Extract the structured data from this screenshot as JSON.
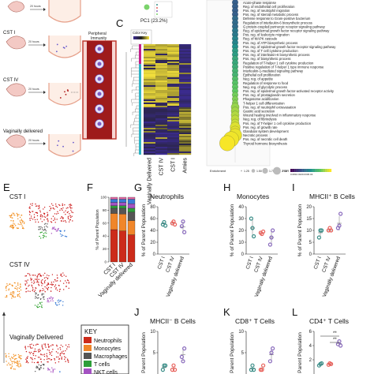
{
  "panel_letters": {
    "c": "C",
    "e": "E",
    "f": "F",
    "g": "G",
    "h": "H",
    "i": "I",
    "j": "J",
    "k": "K",
    "l": "L"
  },
  "panel_a": {
    "rows": [
      {
        "label": "CST I",
        "time": "20 hours"
      },
      {
        "label": "CST IV",
        "time": "20 hours"
      },
      {
        "label": "Vaginally delivered",
        "time": "20 hours"
      }
    ],
    "top_time": "20 hours",
    "peripheral_label": "Peripheral\nImmunity"
  },
  "pca": {
    "axis_label": "PC1 (23.2%)"
  },
  "heatmap": {
    "color_key_title": "Color Key",
    "columns": [
      "Vaginally Delivered",
      "CST IV",
      "CST I",
      "Amies"
    ],
    "colors": {
      "low": "#3b2b8f",
      "mid": "#2a2a2a",
      "high": "#f5e23c"
    }
  },
  "enrichment": {
    "terms": [
      "Acute-phase response",
      "Reg. of endothelial cell proliferation",
      "Pos. reg. of neutrophil migration",
      "Pos. reg. of steroid metabolic process",
      "Defense response to Gram-positive bacterium",
      "Regulation of interleukin-6 biosynthetic process",
      "G protein-coupled purinergic receptor signaling pathway",
      "Reg. of epidermal growth factor receptor signaling pathway",
      "Pos. reg. of leukocyte migration",
      "Reg. of MAPK cascade",
      "Pos. reg. of ATP biosynthetic process",
      "Pos. reg. of epidermal growth factor receptor signaling pathway",
      "Pos. reg. of T cell cytokine production",
      "Pos. reg. of interleukin-6 biosynthetic process",
      "Pos. reg. of biosynthetic process",
      "Regulation of T-helper 1 cell cytokine production",
      "Positive regulation of T-helper 1 type immune response",
      "Interleukin-1-mediated signaling pathway",
      "Epithelial cell proliferation",
      "Neg. reg. of appetite",
      "Regulation of response to food",
      "Neg. reg. of glycolytic process",
      "Pos. reg. of epidermal growth factor-activated receptor activity",
      "Pos. reg. of prostaglandin secretion",
      "Phagosome acidification",
      "T-helper 1 cell differentiation",
      "Pos. reg. of neutrophil extravasation",
      "Gastric acid secretion",
      "Wound healing involved in inflammatory response",
      "Neg. reg. of fibrinolysis",
      "Pos. reg. of T-helper 1 cell cytokine production",
      "Pos. reg. of growth rate",
      "Glandular system development",
      "Necrotic process",
      "Pos. reg. of necrotic cell death",
      "Thyroid hormone biosynthesis"
    ],
    "bubbles": [
      {
        "size": 2,
        "fdr": 0.3
      },
      {
        "size": 2,
        "fdr": 0.3
      },
      {
        "size": 2,
        "fdr": 0.3
      },
      {
        "size": 2,
        "fdr": 0.3
      },
      {
        "size": 2,
        "fdr": 0.35
      },
      {
        "size": 2,
        "fdr": 0.35
      },
      {
        "size": 2,
        "fdr": 0.35
      },
      {
        "size": 2,
        "fdr": 0.4
      },
      {
        "size": 2,
        "fdr": 0.4
      },
      {
        "size": 2,
        "fdr": 0.45
      },
      {
        "size": 2,
        "fdr": 0.45
      },
      {
        "size": 2,
        "fdr": 0.5
      },
      {
        "size": 2,
        "fdr": 0.55
      },
      {
        "size": 2,
        "fdr": 0.55
      },
      {
        "size": 2,
        "fdr": 0.6
      },
      {
        "size": 2,
        "fdr": 0.6
      },
      {
        "size": 2,
        "fdr": 0.62
      },
      {
        "size": 2,
        "fdr": 0.65
      },
      {
        "size": 2,
        "fdr": 0.65
      },
      {
        "size": 2,
        "fdr": 0.7
      },
      {
        "size": 2,
        "fdr": 0.72
      },
      {
        "size": 2,
        "fdr": 0.74
      },
      {
        "size": 2,
        "fdr": 0.75
      },
      {
        "size": 2,
        "fdr": 0.78
      },
      {
        "size": 2,
        "fdr": 0.8
      },
      {
        "size": 2,
        "fdr": 0.82
      },
      {
        "size": 3,
        "fdr": 0.84
      },
      {
        "size": 3,
        "fdr": 0.86
      },
      {
        "size": 3,
        "fdr": 0.88
      },
      {
        "size": 3,
        "fdr": 0.9
      },
      {
        "size": 3,
        "fdr": 0.92
      },
      {
        "size": 4,
        "fdr": 0.95
      },
      {
        "size": 4,
        "fdr": 0.96
      },
      {
        "size": 4,
        "fdr": 0.97
      },
      {
        "size": 5,
        "fdr": 0.98
      },
      {
        "size": 5,
        "fdr": 0.99
      }
    ],
    "legend_enrichment": "Enrichment",
    "legend_sizes": [
      "1.25",
      "1.50",
      "1.75",
      "2.00"
    ],
    "legend_fdr": "FDR",
    "legend_fdr_ticks": "0.0810.0220.0330.04"
  },
  "tsne": {
    "labels": [
      "CST I",
      "CST IV",
      "Vaginally Delivered"
    ],
    "colors": {
      "neutrophils": "#cc1a1a",
      "monocytes": "#f28c1a",
      "macrophages": "#555555",
      "t_cells": "#2ca02c",
      "nkt": "#a64dbf",
      "bcells": "#3a7bd5"
    }
  },
  "key": {
    "title": "KEY",
    "items": [
      {
        "label": "Neutrophils",
        "color": "#cc2b1a"
      },
      {
        "label": "Monocytes",
        "color": "#f0862a"
      },
      {
        "label": "Macrophages",
        "color": "#555555"
      },
      {
        "label": "T cells",
        "color": "#2e9e3a"
      },
      {
        "label": "NKT cells",
        "color": "#a452c2"
      }
    ]
  },
  "chart_data": [
    {
      "panel": "F",
      "type": "bar",
      "categories": [
        "CST I",
        "CST IV",
        "Vaginally delivered"
      ],
      "ylabel": "% of Parent Population",
      "ylim": [
        0,
        100
      ],
      "yticks": [
        "0",
        "20",
        "40",
        "60",
        "80",
        "100"
      ],
      "series": [
        {
          "name": "Neutrophils",
          "color": "#cc2b1a",
          "values": [
            50,
            48,
            42
          ]
        },
        {
          "name": "Monocytes",
          "color": "#f0862a",
          "values": [
            25,
            26,
            22
          ]
        },
        {
          "name": "Macrophages",
          "color": "#555555",
          "values": [
            8,
            9,
            13
          ]
        },
        {
          "name": "T cells",
          "color": "#2e9e3a",
          "values": [
            4,
            4,
            6
          ]
        },
        {
          "name": "NKT cells",
          "color": "#a452c2",
          "values": [
            5,
            5,
            7
          ]
        },
        {
          "name": "",
          "color": "#3a7bd5",
          "values": [
            5,
            5,
            7
          ]
        },
        {
          "name": "",
          "color": "#e86aa6",
          "values": [
            3,
            3,
            3
          ]
        }
      ]
    },
    {
      "panel": "G",
      "type": "scatter",
      "title": "Neutrophils",
      "categories": [
        "CST I",
        "CST IV",
        "Vaginally delivered"
      ],
      "ylabel": "% of Parent Population",
      "ylim": [
        0,
        80
      ],
      "yticks": [
        "0",
        "20",
        "40",
        "60",
        "80"
      ],
      "series": [
        {
          "name": "CST I",
          "color": "#3b8e88",
          "values": [
            50,
            54,
            48
          ],
          "mean": 51
        },
        {
          "name": "CST IV",
          "color": "#e8605a",
          "values": [
            52,
            55,
            50
          ],
          "mean": 52
        },
        {
          "name": "Vaginally delivered",
          "color": "#8a6bbd",
          "values": [
            47,
            55,
            37
          ],
          "mean": 46
        }
      ]
    },
    {
      "panel": "H",
      "type": "scatter",
      "title": "Monocytes",
      "categories": [
        "CST I",
        "CST IV",
        "Vaginally delivered"
      ],
      "ylabel": "% of Parent Population",
      "ylim": [
        0,
        40
      ],
      "yticks": [
        "0",
        "10",
        "20",
        "30",
        "40"
      ],
      "series": [
        {
          "name": "CST I",
          "color": "#3b8e88",
          "values": [
            30,
            22,
            15
          ],
          "mean": 22
        },
        {
          "name": "CST IV",
          "color": "#e8605a",
          "values": [
            18,
            17,
            19
          ],
          "mean": 18
        },
        {
          "name": "Vaginally delivered",
          "color": "#8a6bbd",
          "values": [
            8,
            14,
            20
          ],
          "mean": 14
        }
      ]
    },
    {
      "panel": "I",
      "type": "scatter",
      "title": "MHCII⁺ B Cells",
      "categories": [
        "CST I",
        "CST IV",
        "Vaginally delivered"
      ],
      "ylabel": "% of Parent Population",
      "ylim": [
        0,
        20
      ],
      "yticks": [
        "0",
        "5",
        "10",
        "15",
        "20"
      ],
      "series": [
        {
          "name": "CST I",
          "color": "#3b8e88",
          "values": [
            7,
            10,
            10
          ],
          "mean": 9
        },
        {
          "name": "CST IV",
          "color": "#e8605a",
          "values": [
            10,
            11,
            10
          ],
          "mean": 10
        },
        {
          "name": "Vaginally delivered",
          "color": "#8a6bbd",
          "values": [
            11,
            12,
            17
          ],
          "mean": 13
        }
      ]
    },
    {
      "panel": "J",
      "type": "scatter",
      "title": "MHCII⁻ B Cells",
      "categories": [
        "CST I",
        "CST IV",
        "Vaginally delivered"
      ],
      "ylabel": "Parent Population",
      "ylim": [
        0,
        10
      ],
      "yticks": [
        "0",
        "5",
        "10"
      ],
      "series": [
        {
          "name": "CST I",
          "color": "#3b8e88",
          "values": [
            1,
            2,
            2
          ],
          "mean": 1.5
        },
        {
          "name": "CST IV",
          "color": "#e8605a",
          "values": [
            1,
            2,
            1
          ],
          "mean": 1.3
        },
        {
          "name": "Vaginally delivered",
          "color": "#8a6bbd",
          "values": [
            4,
            3,
            6
          ],
          "mean": 4.5
        }
      ]
    },
    {
      "panel": "K",
      "type": "scatter",
      "title": "CD8⁺ T Cells",
      "categories": [
        "CST I",
        "CST IV",
        "Vaginally delivered"
      ],
      "ylabel": "Parent Population",
      "ylim": [
        0,
        10
      ],
      "yticks": [
        "0",
        "5",
        "10"
      ],
      "series": [
        {
          "name": "CST I",
          "color": "#3b8e88",
          "values": [
            1,
            2,
            1
          ],
          "mean": 1.2
        },
        {
          "name": "CST IV",
          "color": "#e8605a",
          "values": [
            1,
            1,
            2
          ],
          "mean": 1.3
        },
        {
          "name": "Vaginally delivered",
          "color": "#8a6bbd",
          "values": [
            3,
            5,
            6
          ],
          "mean": 4.5
        }
      ]
    },
    {
      "panel": "L",
      "type": "scatter",
      "title": "CD4⁺ T Cells",
      "categories": [
        "CST I",
        "CST IV",
        "Vaginally delivered"
      ],
      "ylabel": "Parent Population",
      "ylim": [
        0,
        6
      ],
      "yticks": [
        "2",
        "4",
        "6"
      ],
      "series": [
        {
          "name": "CST I",
          "color": "#3b8e88",
          "values": [
            1.2,
            1.4,
            1.5
          ],
          "mean": 1.4
        },
        {
          "name": "CST IV",
          "color": "#e8605a",
          "values": [
            1.3,
            1.5,
            1.4
          ],
          "mean": 1.4
        },
        {
          "name": "Vaginally delivered",
          "color": "#8a6bbd",
          "values": [
            4.2,
            4.6,
            4.0
          ],
          "mean": 4.3
        }
      ],
      "annotations": [
        "**",
        "**"
      ]
    }
  ]
}
